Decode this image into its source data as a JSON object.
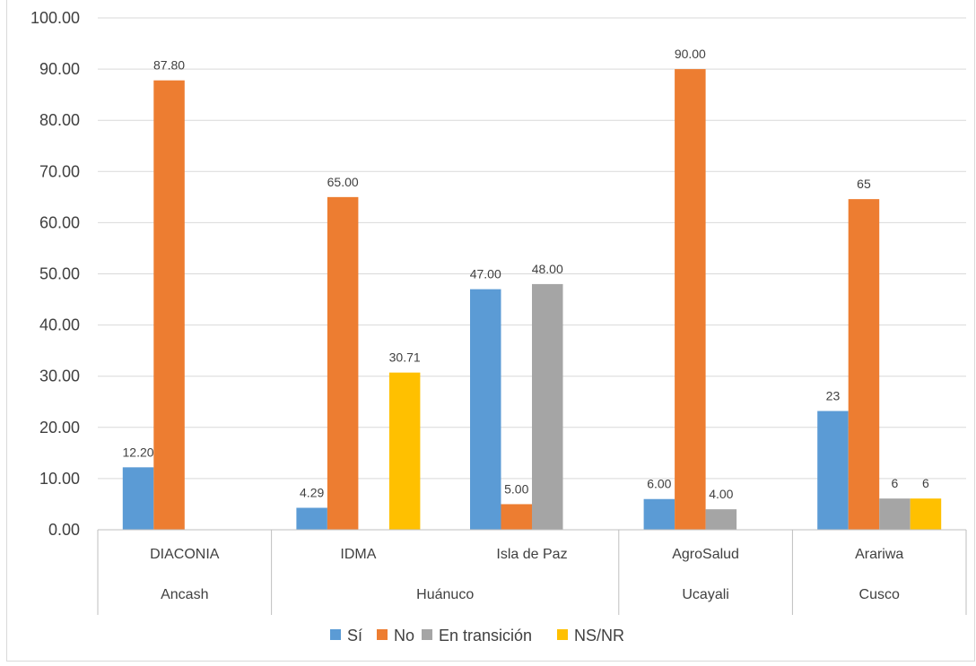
{
  "chart_data": {
    "type": "bar",
    "title": "",
    "xlabel": "",
    "ylabel": "",
    "ylim": [
      0,
      100
    ],
    "yticks": [
      "0.00",
      "10.00",
      "20.00",
      "30.00",
      "40.00",
      "50.00",
      "60.00",
      "70.00",
      "80.00",
      "90.00",
      "100.00"
    ],
    "grid": true,
    "legend_position": "bottom",
    "categories": [
      "DIACONIA",
      "IDMA",
      "Isla de Paz",
      "AgroSalud",
      "Arariwa"
    ],
    "groups": [
      {
        "label": "Ancash",
        "categories": [
          "DIACONIA"
        ]
      },
      {
        "label": "Huánuco",
        "categories": [
          "IDMA",
          "Isla de Paz"
        ]
      },
      {
        "label": "Ucayali",
        "categories": [
          "AgroSalud"
        ]
      },
      {
        "label": "Cusco",
        "categories": [
          "Arariwa"
        ]
      }
    ],
    "series": [
      {
        "name": "Sí",
        "color": "#5b9bd5",
        "values": [
          12.2,
          4.29,
          47.0,
          6.0,
          23.2
        ],
        "labels": [
          "12.20",
          "4.29",
          "47.00",
          "6.00",
          "23"
        ]
      },
      {
        "name": "No",
        "color": "#ed7d31",
        "values": [
          87.8,
          65.0,
          5.0,
          90.0,
          64.6
        ],
        "labels": [
          "87.80",
          "65.00",
          "5.00",
          "90.00",
          "65"
        ]
      },
      {
        "name": "En transición",
        "color": "#a5a5a5",
        "values": [
          null,
          null,
          48.0,
          4.0,
          6.1
        ],
        "labels": [
          "",
          "",
          "48.00",
          "4.00",
          "6"
        ]
      },
      {
        "name": "NS/NR",
        "color": "#ffc000",
        "values": [
          null,
          30.71,
          null,
          null,
          6.1
        ],
        "labels": [
          "",
          "30.71",
          "",
          "",
          "6"
        ]
      }
    ]
  }
}
